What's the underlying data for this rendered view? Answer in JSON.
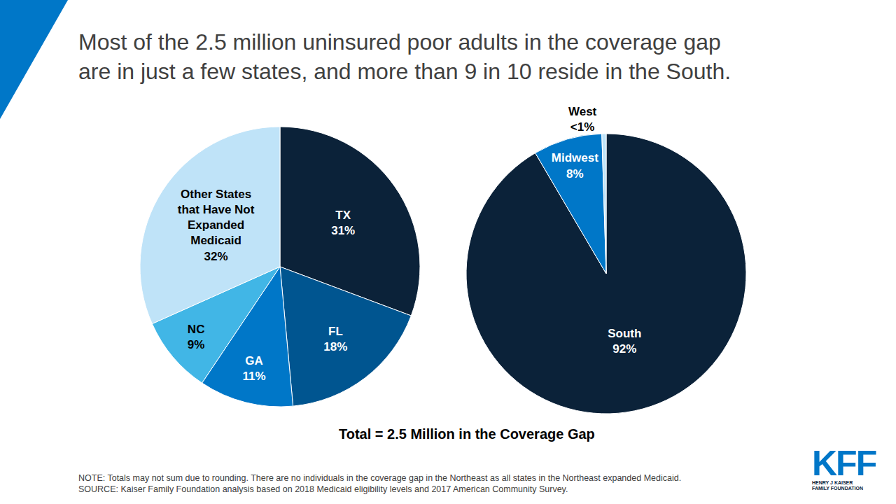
{
  "title": "Most of the 2.5 million uninsured poor adults in the coverage gap\nare in just a few states, and more than 9 in 10 reside in the South.",
  "chart_data": [
    {
      "type": "pie",
      "categories": [
        "TX",
        "FL",
        "GA",
        "NC",
        "Other States\nthat Have Not\nExpanded\nMedicaid"
      ],
      "values": [
        31,
        18,
        11,
        9,
        32
      ],
      "value_labels": [
        "31%",
        "18%",
        "11%",
        "9%",
        "32%"
      ],
      "colors": [
        "#0b2239",
        "#005590",
        "#0077c8",
        "#41b6e6",
        "#bfe3f8"
      ],
      "data_labels": true
    },
    {
      "type": "pie",
      "categories": [
        "South",
        "Midwest",
        "West"
      ],
      "values": [
        92,
        8,
        0.5
      ],
      "value_labels": [
        "92%",
        "8%",
        "<1%"
      ],
      "colors": [
        "#0b2239",
        "#0077c8",
        "#bfe3f8"
      ],
      "data_labels": true
    }
  ],
  "caption": "Total = 2.5 Million in the Coverage Gap",
  "note": "NOTE: Totals may not sum due to rounding. There are no individuals in the coverage gap in the Northeast as all states in the Northeast expanded Medicaid.",
  "source": "SOURCE: Kaiser Family Foundation analysis based on 2018 Medicaid eligibility levels and 2017 American Community Survey.",
  "logo": {
    "text": "KFF",
    "subtitle": "HENRY J KAISER\nFAMILY FOUNDATION"
  }
}
